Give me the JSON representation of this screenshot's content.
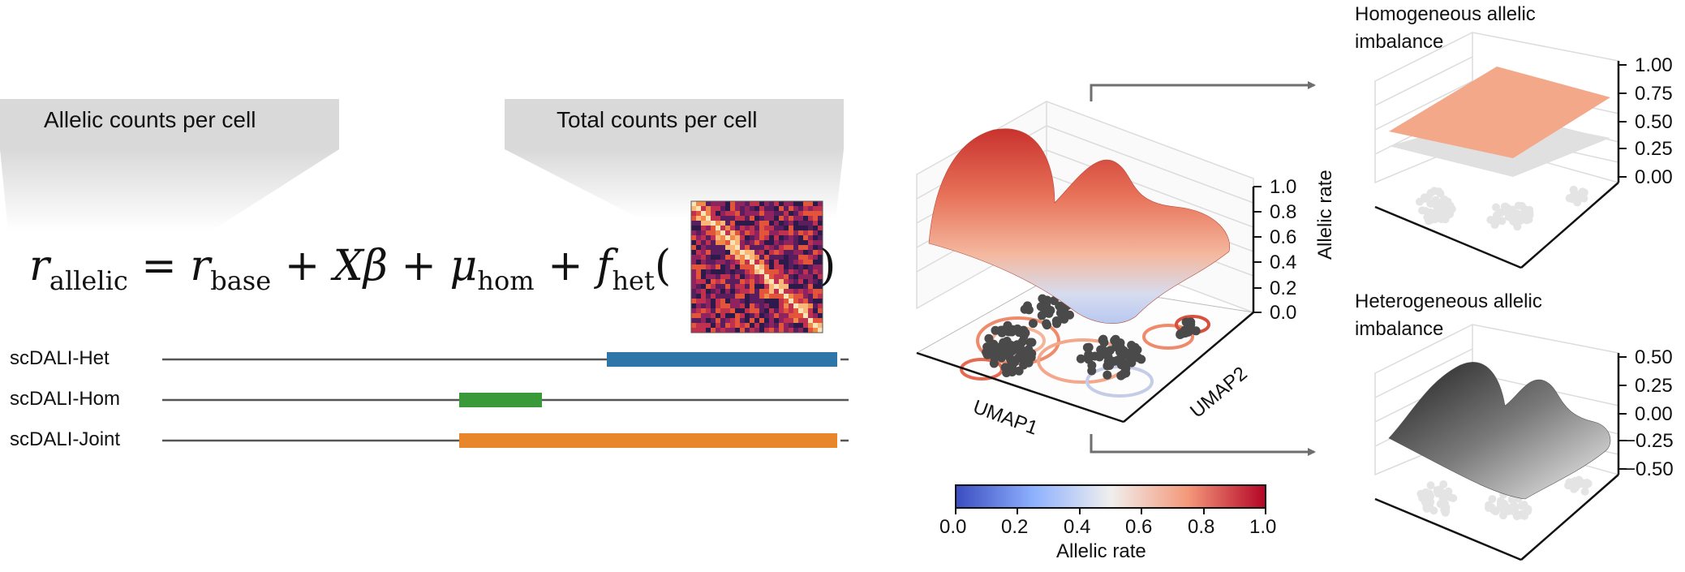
{
  "header_panels": {
    "allelic_label": "Allelic counts per cell",
    "total_label": "Total counts per cell"
  },
  "equation": {
    "lhs_var": "r",
    "lhs_sub": "allelic",
    "eq": "=",
    "base_var": "r",
    "base_sub": "base",
    "plus1": "+",
    "x_beta": "Xβ",
    "plus2": "+",
    "mu_var": "μ",
    "mu_sub": "hom",
    "plus3": "+",
    "f_var": "f",
    "f_sub": "het",
    "open_paren": "(",
    "close_paren": ")"
  },
  "models": [
    {
      "name": "scDALI-Het",
      "color": "#2e76a8"
    },
    {
      "name": "scDALI-Hom",
      "color": "#3a9a3a"
    },
    {
      "name": "scDALI-Joint",
      "color": "#e8862b"
    }
  ],
  "surface_plot": {
    "x_axis_label": "UMAP1",
    "y_axis_label": "UMAP2",
    "z_axis_label": "Allelic rate",
    "z_ticks": [
      "0.0",
      "0.2",
      "0.4",
      "0.6",
      "0.8",
      "1.0"
    ]
  },
  "colorbar": {
    "ticks": [
      "0.0",
      "0.2",
      "0.4",
      "0.6",
      "0.8",
      "1.0"
    ],
    "label": "Allelic rate",
    "colors": [
      "#3b4cc0",
      "#aac7fd",
      "#f2f0ee",
      "#f4987a",
      "#b40426"
    ]
  },
  "hom_plot": {
    "title_line1": "Homogeneous allelic",
    "title_line2": "imbalance",
    "z_ticks": [
      "1.00",
      "0.75",
      "0.50",
      "0.25",
      "0.00"
    ]
  },
  "het_plot": {
    "title_line1": "Heterogeneous allelic",
    "title_line2": "imbalance",
    "z_ticks": [
      "0.50",
      "0.25",
      "0.00",
      "−0.25",
      "−0.50"
    ]
  }
}
